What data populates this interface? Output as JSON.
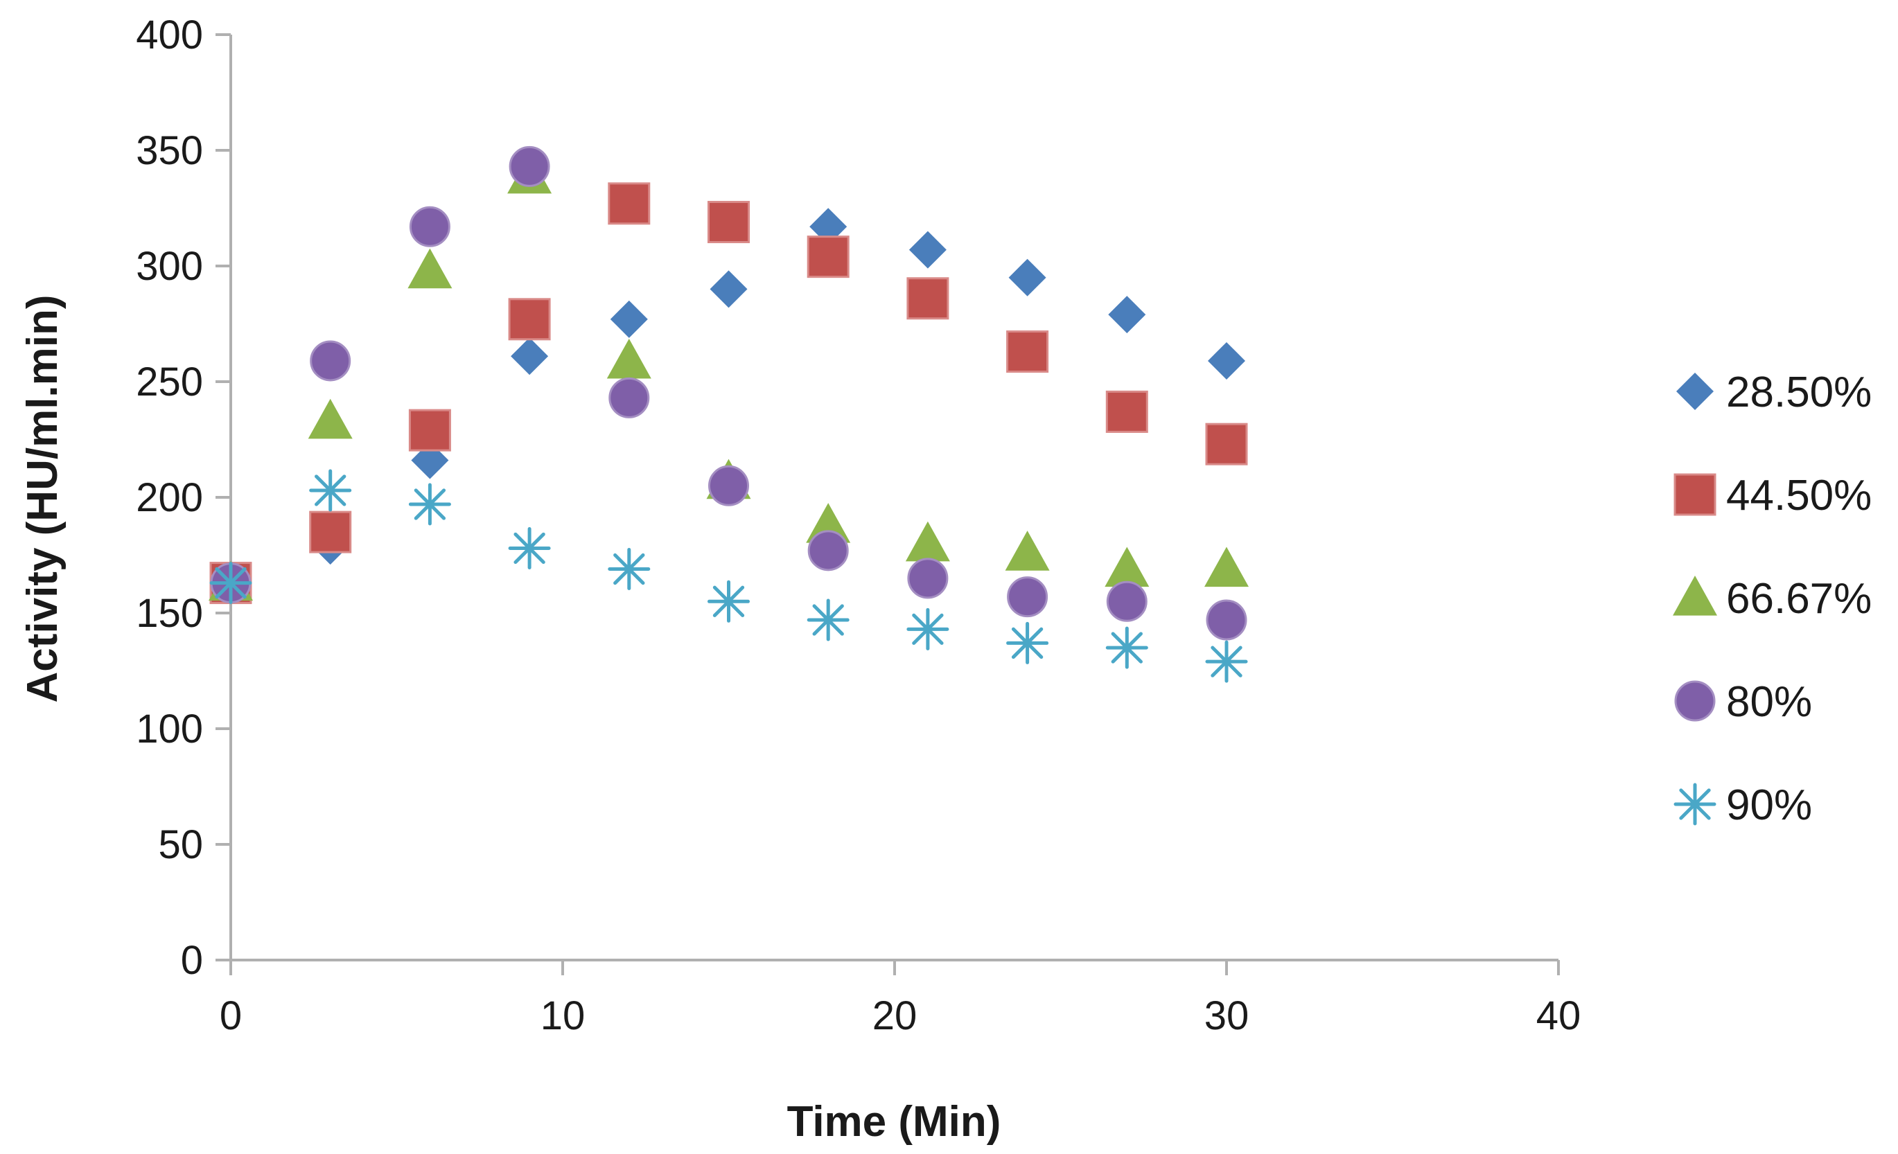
{
  "chart_data": {
    "type": "scatter",
    "title": "",
    "xlabel": "Time (Min)",
    "ylabel": "Activity (HU/ml.min)",
    "xlim": [
      0,
      40
    ],
    "ylim": [
      0,
      400
    ],
    "xticks": [
      0,
      10,
      20,
      30,
      40
    ],
    "yticks": [
      0,
      50,
      100,
      150,
      200,
      250,
      300,
      350,
      400
    ],
    "grid": false,
    "legend_position": "right",
    "x": [
      0,
      3,
      6,
      9,
      12,
      15,
      18,
      21,
      24,
      27,
      30
    ],
    "series": [
      {
        "name": "28.50%",
        "marker": "diamond",
        "color": "#4a7ebb",
        "values": [
          163,
          179,
          216,
          261,
          277,
          290,
          317,
          307,
          295,
          279,
          259
        ]
      },
      {
        "name": "44.50%",
        "marker": "square",
        "color": "#c0504d",
        "values": [
          163,
          185,
          229,
          277,
          null,
          319,
          304,
          286,
          263,
          237,
          223
        ]
      },
      {
        "name": "66.67%",
        "marker": "triangle",
        "color": "#8db54a",
        "values": [
          163,
          233,
          298,
          339,
          259,
          207,
          188,
          180,
          176,
          169,
          169
        ]
      },
      {
        "name": "80%",
        "marker": "circle",
        "color": "#7f5fa8",
        "values": [
          163,
          259,
          317,
          343,
          243,
          205,
          177,
          165,
          157,
          155,
          147
        ]
      },
      {
        "name": "90%",
        "marker": "asterisk",
        "color": "#4aa7c7",
        "values": [
          163,
          203,
          197,
          178,
          169,
          155,
          147,
          143,
          137,
          135,
          129
        ]
      }
    ],
    "extra_points": [
      {
        "series": "44.50%",
        "x": 12,
        "y": 327
      }
    ]
  }
}
